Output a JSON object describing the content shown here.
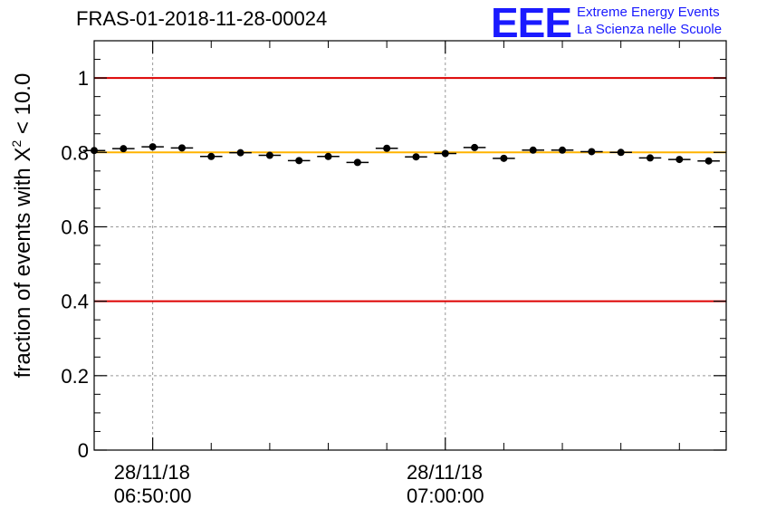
{
  "header": {
    "run_id": "FRAS-01-2018-11-28-00024"
  },
  "logo": {
    "mark": "EEE",
    "line1": "Extreme Energy Events",
    "line2": "La Scienza nelle Scuole",
    "color": "#1a1aff"
  },
  "chart_data": {
    "type": "scatter",
    "title": "FRAS-01-2018-11-28-00024",
    "ylabel": {
      "prefix": "fraction of events with ",
      "chi": "X",
      "sup": "2",
      "suffix": " < 10.0"
    },
    "xlabel": "",
    "ylim": [
      0,
      1.1
    ],
    "xlim_minutes": [
      -2,
      19.6
    ],
    "y_ticks": [
      0,
      0.2,
      0.4,
      0.6,
      0.8,
      1
    ],
    "y_tick_labels": [
      "0",
      "0.2",
      "0.4",
      "0.6",
      "0.8",
      "1"
    ],
    "x_major_ticks": [
      {
        "minute": 0,
        "date": "28/11/18",
        "time": "06:50:00"
      },
      {
        "minute": 10,
        "date": "28/11/18",
        "time": "07:00:00"
      }
    ],
    "x_minor_tick_minutes": [
      -2,
      2,
      4,
      6,
      8,
      12,
      14,
      16,
      18
    ],
    "grid": true,
    "reference_lines": [
      {
        "y": 1.0,
        "color": "#dd0000",
        "name": "upper-limit"
      },
      {
        "y": 0.8,
        "color": "#ffb400",
        "name": "target"
      },
      {
        "y": 0.4,
        "color": "#dd0000",
        "name": "lower-limit"
      }
    ],
    "series": [
      {
        "name": "fraction",
        "x_minutes": [
          -2,
          -1,
          0,
          1,
          2,
          3,
          4,
          5,
          6,
          7,
          8,
          9,
          10,
          11,
          12,
          13,
          14,
          15,
          16,
          17,
          18,
          19
        ],
        "x_halfwidth_minutes": 0.38,
        "values": [
          0.805,
          0.81,
          0.815,
          0.812,
          0.789,
          0.799,
          0.792,
          0.778,
          0.789,
          0.773,
          0.811,
          0.788,
          0.797,
          0.813,
          0.784,
          0.806,
          0.806,
          0.802,
          0.8,
          0.785,
          0.781,
          0.777
        ]
      }
    ]
  }
}
